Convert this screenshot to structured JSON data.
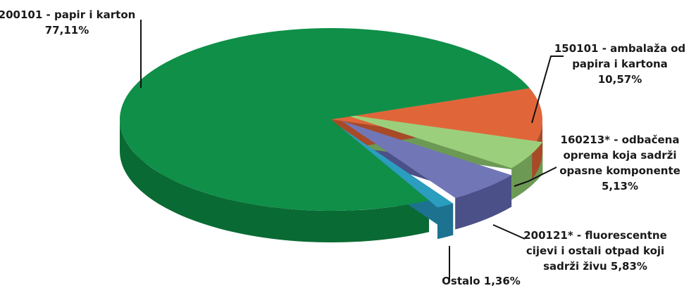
{
  "chart_data": {
    "type": "pie",
    "title": "",
    "slices": [
      {
        "label_lines": [
          "200101 - papir i karton",
          "77,11%"
        ],
        "value": 77.11,
        "color": "#0f8f48",
        "side": "#0a6a34"
      },
      {
        "label_lines": [
          "150101 - ambalaža od",
          "papira i kartona",
          "10,57%"
        ],
        "value": 10.57,
        "color": "#e0663a",
        "side": "#a84a28"
      },
      {
        "label_lines": [
          "160213* - odbačena",
          "oprema koja sadrži",
          "opasne komponente",
          "5,13%"
        ],
        "value": 5.13,
        "color": "#9ccf7c",
        "side": "#6c9a55"
      },
      {
        "label_lines": [
          "200121* - fluorescentne",
          "cijevi i ostali otpad koji",
          "sadrži živu 5,83%"
        ],
        "value": 5.83,
        "color": "#7176b6",
        "side": "#4c5088"
      },
      {
        "label_lines": [
          "Ostalo 1,36%"
        ],
        "value": 1.36,
        "color": "#2b9dbf",
        "side": "#1d7290"
      }
    ]
  }
}
